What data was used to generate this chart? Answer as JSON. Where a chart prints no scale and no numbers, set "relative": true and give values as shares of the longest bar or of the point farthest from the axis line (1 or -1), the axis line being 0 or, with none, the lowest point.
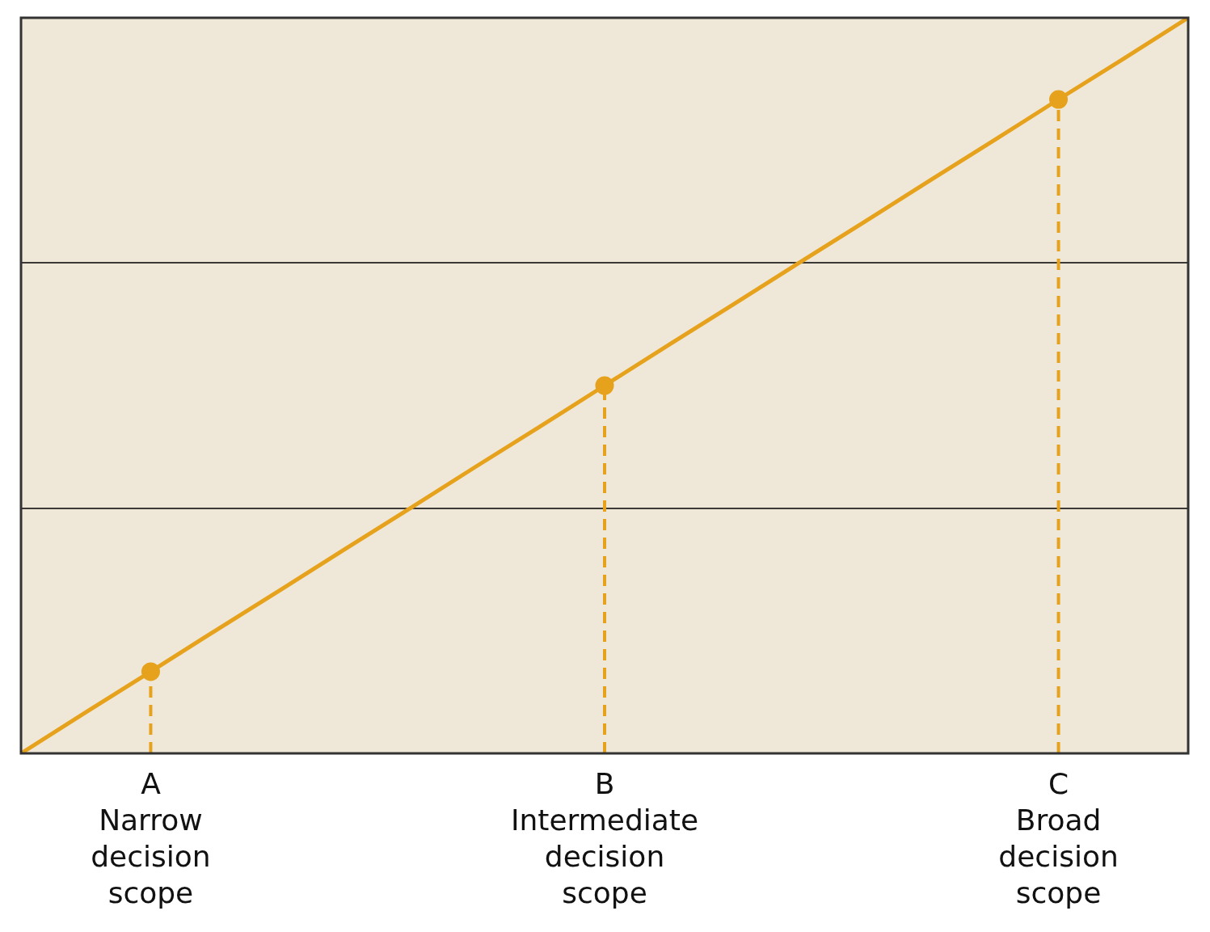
{
  "chart_data": {
    "type": "line",
    "relative": true,
    "categories": [
      null,
      null,
      "A\nNarrow\ndecision\nscope",
      null,
      null,
      null,
      null,
      null,
      null,
      "B\nIntermediate\ndecision\nscope",
      null,
      null,
      null,
      null,
      null,
      null,
      "C\nBroad\ndecision\nscope",
      null,
      null
    ],
    "series": [
      {
        "type": "line",
        "color": "#e6a21c",
        "values": [
          0,
          0.056,
          0.111,
          0.167,
          0.222,
          0.278,
          0.333,
          0.389,
          0.444,
          0.5,
          0.556,
          0.611,
          0.667,
          0.722,
          0.778,
          0.833,
          0.889,
          0.944,
          1
        ],
        "marker": "none"
      },
      {
        "type": "lollipop",
        "color": "#e6a21c",
        "values": [
          null,
          null,
          0.111,
          null,
          null,
          null,
          null,
          null,
          null,
          0.5,
          null,
          null,
          null,
          null,
          null,
          null,
          0.889,
          null,
          null
        ],
        "marker": "circle",
        "line_style": "dashed"
      }
    ],
    "ref_lines": [
      {
        "axis": "y",
        "value": 0.333,
        "color": "#000000"
      },
      {
        "axis": "y",
        "value": 0.667,
        "color": "#000000"
      }
    ],
    "legend": false
  }
}
